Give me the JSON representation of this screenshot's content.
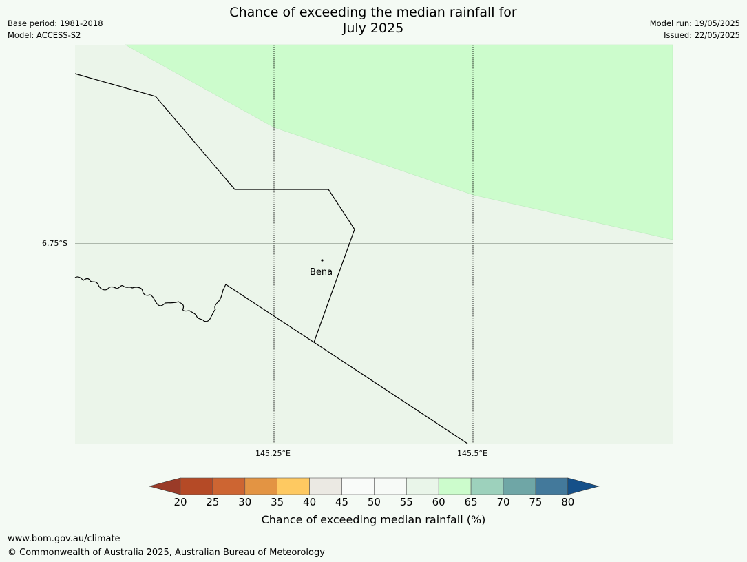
{
  "title_line1": "Chance of exceeding the median rainfall for",
  "title_line2": "July 2025",
  "base_period": "Base period: 1981-2018",
  "model": "Model: ACCESS-S2",
  "model_run": "Model run: 19/05/2025",
  "issued": "Issued: 22/05/2025",
  "lat_label": "6.75°S",
  "lon_labels": [
    "145.25°E",
    "145.5°E"
  ],
  "place_name": "Bena",
  "colorbar": {
    "ticks": [
      "20",
      "25",
      "30",
      "35",
      "40",
      "45",
      "50",
      "55",
      "60",
      "65",
      "70",
      "75",
      "80"
    ],
    "colors": [
      "#9a3b28",
      "#b54a26",
      "#cd6532",
      "#e39443",
      "#fec961",
      "#ebe9e3",
      "#f9fbf9",
      "#f7faf7",
      "#e9f5e9",
      "#ccfccc",
      "#9dd1bc",
      "#6fa6a6",
      "#43799b",
      "#155089"
    ],
    "label": "Chance of exceeding median rainfall (%)"
  },
  "map_colors": {
    "base": "#ebf5ea",
    "high": "#ccfccc"
  },
  "footer_url": "www.bom.gov.au/climate",
  "footer_copyright": "© Commonwealth of Australia 2025, Australian Bureau of Meteorology"
}
